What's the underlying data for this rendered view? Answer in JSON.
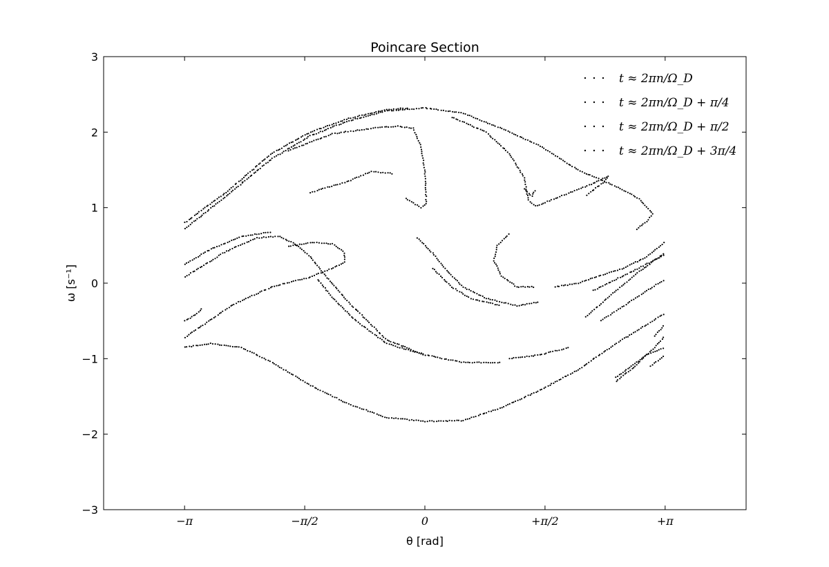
{
  "chart_data": {
    "type": "scatter",
    "title": "Poincare Section",
    "xlabel": "θ [rad]",
    "ylabel": "ω [s⁻¹]",
    "xlim": [
      -4.2,
      4.2
    ],
    "ylim": [
      -3,
      3
    ],
    "x_ticks": [
      {
        "value": -3.14159,
        "label": "−π"
      },
      {
        "value": -1.5708,
        "label": "−π/2"
      },
      {
        "value": 0,
        "label": "0"
      },
      {
        "value": 1.5708,
        "label": "+π/2"
      },
      {
        "value": 3.14159,
        "label": "+π"
      }
    ],
    "y_ticks": [
      {
        "value": 3,
        "label": "3"
      },
      {
        "value": 2,
        "label": "2"
      },
      {
        "value": 1,
        "label": "1"
      },
      {
        "value": 0,
        "label": "0"
      },
      {
        "value": -1,
        "label": "−1"
      },
      {
        "value": -2,
        "label": "−2"
      },
      {
        "value": -3,
        "label": "−3"
      }
    ],
    "grid": false,
    "legend_position": "top-right",
    "marker_color": "#000000",
    "series": [
      {
        "name": "t ≈ 2πn/Ω_D",
        "curves": [
          [
            [
              -3.14,
              0.72
            ],
            [
              -2.6,
              1.15
            ],
            [
              -2.0,
              1.65
            ],
            [
              -1.5,
              1.95
            ],
            [
              -1.0,
              2.15
            ],
            [
              -0.5,
              2.28
            ],
            [
              0.0,
              2.32
            ],
            [
              0.5,
              2.25
            ],
            [
              1.0,
              2.05
            ],
            [
              1.5,
              1.82
            ],
            [
              2.0,
              1.5
            ],
            [
              2.5,
              1.28
            ],
            [
              2.8,
              1.12
            ],
            [
              2.98,
              0.92
            ],
            [
              2.9,
              0.82
            ],
            [
              2.75,
              0.7
            ]
          ],
          [
            [
              -3.14,
              -0.72
            ],
            [
              -2.5,
              -0.28
            ],
            [
              -2.0,
              -0.05
            ],
            [
              -1.5,
              0.08
            ],
            [
              -1.2,
              0.2
            ],
            [
              -1.05,
              0.28
            ],
            [
              -1.05,
              0.4
            ],
            [
              -1.2,
              0.52
            ],
            [
              -1.5,
              0.54
            ],
            [
              -1.8,
              0.48
            ]
          ],
          [
            [
              -1.4,
              0.05
            ],
            [
              -1.2,
              -0.2
            ],
            [
              -0.9,
              -0.5
            ],
            [
              -0.5,
              -0.8
            ],
            [
              0.0,
              -0.95
            ],
            [
              0.5,
              -1.05
            ],
            [
              1.0,
              -1.05
            ]
          ]
        ]
      },
      {
        "name": "t ≈ 2πn/Ω_D + π/4",
        "curves": [
          [
            [
              -3.14,
              0.8
            ],
            [
              -2.6,
              1.2
            ],
            [
              -2.0,
              1.72
            ],
            [
              -1.5,
              2.0
            ],
            [
              -1.0,
              2.18
            ],
            [
              -0.5,
              2.3
            ],
            [
              -0.2,
              2.32
            ]
          ],
          [
            [
              -3.14,
              0.08
            ],
            [
              -2.6,
              0.42
            ],
            [
              -2.2,
              0.6
            ],
            [
              -1.9,
              0.62
            ],
            [
              -1.7,
              0.52
            ],
            [
              -1.5,
              0.35
            ],
            [
              -1.3,
              0.1
            ],
            [
              -1.0,
              -0.25
            ],
            [
              -0.5,
              -0.75
            ],
            [
              0.0,
              -0.95
            ]
          ],
          [
            [
              -3.14,
              -0.85
            ],
            [
              -2.8,
              -0.8
            ],
            [
              -2.4,
              -0.85
            ],
            [
              -2.0,
              -1.05
            ],
            [
              -1.5,
              -1.35
            ],
            [
              -1.0,
              -1.6
            ],
            [
              -0.5,
              -1.78
            ],
            [
              0.0,
              -1.83
            ],
            [
              0.5,
              -1.82
            ],
            [
              1.0,
              -1.65
            ],
            [
              1.5,
              -1.42
            ],
            [
              2.0,
              -1.15
            ],
            [
              2.5,
              -0.8
            ],
            [
              3.14,
              -0.4
            ]
          ],
          [
            [
              2.5,
              -1.3
            ],
            [
              2.75,
              -1.1
            ],
            [
              3.0,
              -0.85
            ],
            [
              3.14,
              -0.7
            ]
          ]
        ]
      },
      {
        "name": "t ≈ 2πn/Ω_D + π/2",
        "curves": [
          [
            [
              -1.5,
              1.2
            ],
            [
              -1.0,
              1.35
            ],
            [
              -0.7,
              1.48
            ],
            [
              -0.4,
              1.45
            ]
          ],
          [
            [
              -0.25,
              1.12
            ],
            [
              -0.05,
              1.0
            ],
            [
              0.02,
              1.05
            ],
            [
              0.0,
              1.5
            ],
            [
              -0.05,
              1.8
            ],
            [
              -0.15,
              2.05
            ],
            [
              -0.35,
              2.08
            ],
            [
              -0.7,
              2.05
            ],
            [
              -1.2,
              1.98
            ],
            [
              -1.8,
              1.75
            ]
          ],
          [
            [
              0.35,
              2.2
            ],
            [
              0.8,
              2.0
            ],
            [
              1.1,
              1.72
            ],
            [
              1.3,
              1.4
            ],
            [
              1.35,
              1.1
            ],
            [
              1.45,
              1.02
            ],
            [
              1.6,
              1.08
            ],
            [
              1.9,
              1.2
            ],
            [
              2.2,
              1.32
            ],
            [
              2.4,
              1.42
            ],
            [
              2.35,
              1.35
            ],
            [
              2.1,
              1.15
            ]
          ],
          [
            [
              1.1,
              0.65
            ],
            [
              0.95,
              0.5
            ],
            [
              0.9,
              0.3
            ],
            [
              1.0,
              0.1
            ],
            [
              1.2,
              -0.05
            ],
            [
              1.45,
              -0.05
            ]
          ],
          [
            [
              1.7,
              -0.05
            ],
            [
              2.0,
              0.0
            ],
            [
              2.3,
              0.1
            ],
            [
              2.6,
              0.2
            ],
            [
              2.9,
              0.35
            ],
            [
              3.14,
              0.55
            ]
          ],
          [
            [
              2.1,
              -0.45
            ],
            [
              2.5,
              -0.1
            ],
            [
              2.8,
              0.15
            ],
            [
              3.14,
              0.4
            ]
          ]
        ]
      },
      {
        "name": "t ≈ 2πn/Ω_D + 3π/4",
        "curves": [
          [
            [
              -3.14,
              0.25
            ],
            [
              -2.8,
              0.45
            ],
            [
              -2.4,
              0.62
            ],
            [
              -2.0,
              0.68
            ]
          ],
          [
            [
              -3.14,
              -0.5
            ],
            [
              -3.0,
              -0.42
            ],
            [
              -2.9,
              -0.32
            ]
          ],
          [
            [
              -0.1,
              0.6
            ],
            [
              0.1,
              0.4
            ],
            [
              0.3,
              0.15
            ],
            [
              0.5,
              -0.05
            ],
            [
              0.8,
              -0.2
            ],
            [
              1.2,
              -0.3
            ],
            [
              1.5,
              -0.25
            ]
          ],
          [
            [
              0.1,
              0.2
            ],
            [
              0.35,
              -0.05
            ],
            [
              0.6,
              -0.2
            ],
            [
              1.0,
              -0.3
            ]
          ],
          [
            [
              2.2,
              -0.1
            ],
            [
              2.5,
              0.05
            ],
            [
              2.8,
              0.2
            ],
            [
              3.14,
              0.38
            ]
          ],
          [
            [
              2.3,
              -0.5
            ],
            [
              2.6,
              -0.3
            ],
            [
              2.9,
              -0.1
            ],
            [
              3.14,
              0.05
            ]
          ],
          [
            [
              2.5,
              -1.25
            ],
            [
              2.7,
              -1.1
            ],
            [
              2.9,
              -0.95
            ],
            [
              3.14,
              -0.85
            ]
          ],
          [
            [
              2.95,
              -1.1
            ],
            [
              3.14,
              -0.95
            ]
          ],
          [
            [
              3.0,
              -0.7
            ],
            [
              3.14,
              -0.55
            ]
          ],
          [
            [
              1.1,
              -1.0
            ],
            [
              1.5,
              -0.95
            ],
            [
              1.9,
              -0.85
            ]
          ],
          [
            [
              1.3,
              1.25
            ],
            [
              1.4,
              1.15
            ],
            [
              1.45,
              1.25
            ]
          ]
        ]
      }
    ]
  }
}
